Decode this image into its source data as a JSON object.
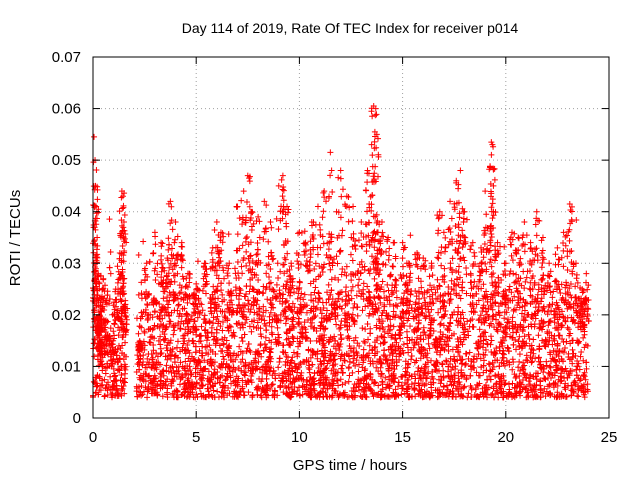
{
  "chart_data": {
    "type": "scatter",
    "title": "Day 114 of 2019, Rate Of TEC Index for receiver p014",
    "xlabel": "GPS time / hours",
    "ylabel": "ROTI / TECUs",
    "xlim": [
      0,
      25
    ],
    "ylim": [
      0,
      0.07
    ],
    "x_ticks": [
      0,
      5,
      10,
      15,
      20,
      25
    ],
    "x_tick_labels": [
      "0",
      "5",
      "10",
      "15",
      "20",
      "25"
    ],
    "y_ticks": [
      0,
      0.01,
      0.02,
      0.03,
      0.04,
      0.05,
      0.06,
      0.07
    ],
    "y_tick_labels": [
      "0",
      "0.01",
      "0.02",
      "0.03",
      "0.04",
      "0.05",
      "0.06",
      "0.07"
    ],
    "grid": true,
    "marker": "plus",
    "series": [
      {
        "name": "ROTI",
        "color": "#ff0000",
        "x": [
          0.05,
          0.1,
          0.12,
          0.15,
          0.2,
          0.25,
          0.3,
          0.35,
          0.5,
          0.7,
          0.9,
          1.1,
          1.3,
          1.4,
          1.45,
          1.5,
          1.55,
          2.3,
          2.6,
          3.0,
          3.3,
          3.6,
          3.75,
          4.0,
          4.3,
          4.6,
          5.0,
          5.4,
          5.8,
          6.0,
          6.2,
          6.6,
          7.0,
          7.3,
          7.5,
          7.7,
          8.0,
          8.3,
          8.6,
          9.0,
          9.2,
          9.4,
          9.6,
          10.0,
          10.3,
          10.6,
          10.9,
          11.2,
          11.5,
          11.8,
          12.0,
          12.3,
          12.6,
          13.0,
          13.3,
          13.5,
          13.6,
          13.7,
          13.75,
          13.8,
          14.0,
          14.3,
          14.6,
          15.0,
          15.3,
          15.7,
          16.0,
          16.4,
          16.8,
          17.0,
          17.3,
          17.6,
          17.8,
          18.0,
          18.4,
          18.8,
          19.0,
          19.3,
          19.35,
          19.4,
          19.6,
          20.0,
          20.3,
          20.6,
          20.9,
          21.2,
          21.5,
          21.8,
          22.1,
          22.5,
          22.8,
          23.1,
          23.4,
          23.7,
          23.9
        ],
        "y": [
          0.0545,
          0.05,
          0.045,
          0.041,
          0.035,
          0.028,
          0.02,
          0.012,
          0.027,
          0.016,
          0.01,
          0.025,
          0.032,
          0.044,
          0.043,
          0.038,
          0.022,
          0.012,
          0.03,
          0.036,
          0.034,
          0.031,
          0.042,
          0.038,
          0.034,
          0.028,
          0.026,
          0.03,
          0.033,
          0.038,
          0.036,
          0.03,
          0.041,
          0.044,
          0.047,
          0.04,
          0.039,
          0.042,
          0.038,
          0.045,
          0.047,
          0.041,
          0.03,
          0.036,
          0.034,
          0.038,
          0.041,
          0.044,
          0.0515,
          0.04,
          0.048,
          0.043,
          0.041,
          0.038,
          0.048,
          0.053,
          0.0605,
          0.06,
          0.055,
          0.036,
          0.038,
          0.035,
          0.034,
          0.034,
          0.03,
          0.032,
          0.031,
          0.03,
          0.04,
          0.036,
          0.042,
          0.046,
          0.048,
          0.04,
          0.034,
          0.033,
          0.044,
          0.0535,
          0.053,
          0.045,
          0.034,
          0.03,
          0.036,
          0.035,
          0.038,
          0.034,
          0.04,
          0.035,
          0.03,
          0.033,
          0.036,
          0.0415,
          0.03,
          0.025,
          0.028
        ]
      }
    ],
    "dense_band": {
      "description": "baseline ROTI values between about 0.004 and 0.02 TECU/s across the whole day",
      "x_range": [
        0,
        24
      ],
      "y_low": 0.004,
      "y_high": 0.02
    }
  }
}
